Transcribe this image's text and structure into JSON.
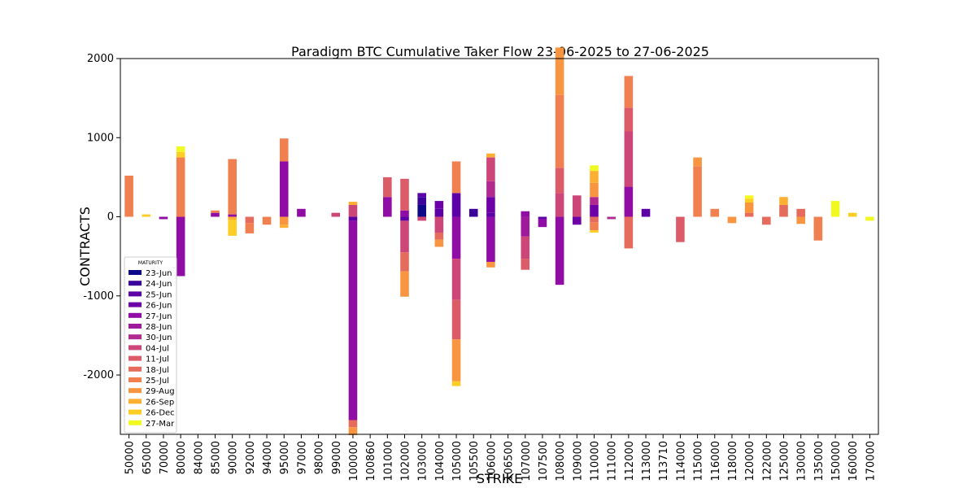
{
  "chart_data": {
    "type": "bar",
    "stacked": true,
    "title": "Paradigm BTC Cumulative Taker Flow 23-06-2025 to 27-06-2025",
    "xlabel": "STRIKE",
    "ylabel": "CONTRACTS",
    "ylim": [
      -2750,
      2000
    ],
    "yticks": [
      2000,
      1000,
      0,
      -1000,
      -2000
    ],
    "legend_title": "MATURITY",
    "legend_position": "lower-left",
    "categories": [
      "50000",
      "65000",
      "70000",
      "80000",
      "84000",
      "85000",
      "90000",
      "92000",
      "94000",
      "95000",
      "97000",
      "98000",
      "99000",
      "100000",
      "100860",
      "101000",
      "102000",
      "103000",
      "104000",
      "105000",
      "105500",
      "106000",
      "106500",
      "107000",
      "107500",
      "108000",
      "109000",
      "110000",
      "111000",
      "112000",
      "113000",
      "113710",
      "114000",
      "115000",
      "116000",
      "118000",
      "120000",
      "122000",
      "125000",
      "130000",
      "135000",
      "150000",
      "160000",
      "170000"
    ],
    "series": [
      {
        "name": "23-Jun",
        "color": "#0d0887",
        "values": [
          0,
          0,
          0,
          0,
          0,
          0,
          0,
          0,
          0,
          0,
          0,
          0,
          0,
          0,
          0,
          0,
          0,
          150,
          0,
          0,
          0,
          0,
          0,
          0,
          0,
          0,
          0,
          0,
          0,
          0,
          0,
          0,
          0,
          0,
          0,
          0,
          0,
          0,
          0,
          0,
          0,
          0,
          0,
          0
        ]
      },
      {
        "name": "24-Jun",
        "color": "#3a049a",
        "values": [
          0,
          0,
          0,
          0,
          0,
          0,
          0,
          0,
          0,
          0,
          0,
          0,
          0,
          0,
          0,
          0,
          0,
          100,
          0,
          0,
          100,
          0,
          0,
          0,
          0,
          0,
          0,
          0,
          0,
          0,
          0,
          0,
          0,
          0,
          0,
          0,
          0,
          0,
          0,
          0,
          0,
          0,
          0,
          0
        ]
      },
      {
        "name": "25-Jun",
        "color": "#5c01a6",
        "values": [
          0,
          0,
          0,
          0,
          0,
          0,
          0,
          0,
          0,
          0,
          0,
          0,
          0,
          -50,
          0,
          0,
          -50,
          50,
          100,
          300,
          0,
          50,
          0,
          0,
          -30,
          0,
          0,
          0,
          0,
          0,
          100,
          0,
          0,
          0,
          0,
          0,
          0,
          0,
          0,
          0,
          0,
          0,
          0,
          0
        ]
      },
      {
        "name": "26-Jun",
        "color": "#6e00a8",
        "values": [
          0,
          0,
          0,
          0,
          0,
          0,
          0,
          0,
          0,
          0,
          0,
          0,
          0,
          0,
          0,
          0,
          0,
          0,
          100,
          0,
          0,
          200,
          0,
          0,
          0,
          0,
          -100,
          150,
          0,
          0,
          0,
          0,
          0,
          0,
          0,
          0,
          0,
          0,
          0,
          0,
          0,
          0,
          0,
          0
        ]
      },
      {
        "name": "27-Jun",
        "color": "#8f0da4",
        "values": [
          0,
          0,
          -30,
          -750,
          0,
          50,
          30,
          0,
          0,
          700,
          100,
          0,
          0,
          -2520,
          0,
          250,
          80,
          0,
          0,
          -530,
          0,
          -570,
          0,
          70,
          -100,
          -860,
          0,
          0,
          0,
          380,
          0,
          0,
          0,
          0,
          0,
          0,
          0,
          0,
          0,
          0,
          0,
          0,
          0,
          0
        ]
      },
      {
        "name": "28-Jun",
        "color": "#a01a9c",
        "values": [
          0,
          0,
          0,
          0,
          0,
          0,
          0,
          0,
          0,
          0,
          0,
          0,
          0,
          0,
          0,
          0,
          0,
          0,
          0,
          0,
          0,
          0,
          0,
          -250,
          0,
          0,
          0,
          0,
          0,
          0,
          0,
          0,
          0,
          0,
          0,
          0,
          0,
          0,
          0,
          0,
          0,
          0,
          0,
          0
        ]
      },
      {
        "name": "30-Jun",
        "color": "#b12a90",
        "values": [
          0,
          0,
          0,
          0,
          0,
          0,
          0,
          0,
          0,
          0,
          0,
          0,
          0,
          0,
          0,
          0,
          0,
          0,
          0,
          0,
          0,
          200,
          0,
          0,
          0,
          0,
          0,
          100,
          -30,
          0,
          0,
          0,
          0,
          0,
          0,
          0,
          0,
          0,
          0,
          0,
          0,
          0,
          0,
          0
        ]
      },
      {
        "name": "04-Jul",
        "color": "#cc4778",
        "values": [
          0,
          0,
          0,
          0,
          0,
          0,
          0,
          0,
          0,
          0,
          0,
          0,
          50,
          150,
          0,
          0,
          -400,
          -50,
          -200,
          -520,
          0,
          300,
          0,
          -280,
          0,
          300,
          270,
          0,
          0,
          700,
          0,
          0,
          0,
          0,
          0,
          0,
          0,
          0,
          0,
          0,
          0,
          0,
          0,
          0
        ]
      },
      {
        "name": "11-Jul",
        "color": "#db5c68",
        "values": [
          0,
          0,
          0,
          0,
          0,
          0,
          0,
          0,
          0,
          0,
          0,
          0,
          0,
          0,
          0,
          250,
          400,
          0,
          0,
          -500,
          0,
          0,
          0,
          -140,
          0,
          320,
          0,
          0,
          0,
          300,
          0,
          0,
          -320,
          0,
          0,
          0,
          0,
          0,
          0,
          0,
          0,
          0,
          0,
          0
        ]
      },
      {
        "name": "18-Jul",
        "color": "#e56b5d",
        "values": [
          0,
          0,
          0,
          0,
          0,
          0,
          0,
          -80,
          0,
          0,
          0,
          0,
          0,
          -90,
          0,
          0,
          -240,
          0,
          -90,
          0,
          0,
          0,
          0,
          0,
          0,
          0,
          0,
          -70,
          0,
          -400,
          0,
          0,
          0,
          0,
          0,
          0,
          50,
          -100,
          150,
          100,
          0,
          0,
          0,
          0
        ]
      },
      {
        "name": "25-Jul",
        "color": "#f0804f",
        "values": [
          520,
          0,
          0,
          750,
          0,
          30,
          700,
          -130,
          -100,
          290,
          0,
          0,
          0,
          0,
          0,
          0,
          0,
          0,
          0,
          400,
          0,
          0,
          0,
          0,
          0,
          920,
          0,
          -100,
          0,
          400,
          0,
          0,
          0,
          640,
          100,
          0,
          0,
          0,
          0,
          0,
          -300,
          0,
          0,
          0
        ]
      },
      {
        "name": "29-Aug",
        "color": "#f89540",
        "values": [
          0,
          0,
          0,
          0,
          0,
          0,
          0,
          0,
          0,
          -100,
          0,
          0,
          0,
          -100,
          0,
          0,
          -320,
          0,
          -90,
          -530,
          0,
          -70,
          0,
          0,
          0,
          600,
          0,
          180,
          0,
          0,
          0,
          0,
          0,
          110,
          0,
          -80,
          130,
          0,
          0,
          -90,
          0,
          0,
          0,
          0
        ]
      },
      {
        "name": "26-Sep",
        "color": "#fdaf31",
        "values": [
          0,
          0,
          0,
          0,
          0,
          0,
          -40,
          0,
          0,
          -40,
          0,
          0,
          0,
          40,
          0,
          0,
          0,
          0,
          0,
          0,
          0,
          50,
          0,
          0,
          0,
          0,
          0,
          150,
          0,
          0,
          0,
          0,
          0,
          0,
          0,
          0,
          0,
          0,
          100,
          0,
          0,
          0,
          0,
          0
        ]
      },
      {
        "name": "26-Dec",
        "color": "#fccd25",
        "values": [
          0,
          30,
          0,
          70,
          0,
          0,
          -200,
          0,
          0,
          0,
          0,
          0,
          0,
          0,
          0,
          0,
          0,
          0,
          0,
          -60,
          0,
          0,
          0,
          0,
          0,
          0,
          0,
          -30,
          0,
          0,
          0,
          0,
          0,
          0,
          0,
          0,
          50,
          0,
          0,
          0,
          0,
          0,
          50,
          0
        ]
      },
      {
        "name": "27-Mar",
        "color": "#f0f921",
        "values": [
          0,
          0,
          0,
          70,
          0,
          0,
          0,
          0,
          0,
          0,
          0,
          0,
          0,
          0,
          0,
          0,
          0,
          0,
          0,
          0,
          0,
          0,
          0,
          0,
          0,
          0,
          0,
          70,
          0,
          0,
          0,
          0,
          0,
          0,
          0,
          0,
          40,
          0,
          0,
          0,
          0,
          200,
          0,
          -50
        ]
      }
    ]
  }
}
